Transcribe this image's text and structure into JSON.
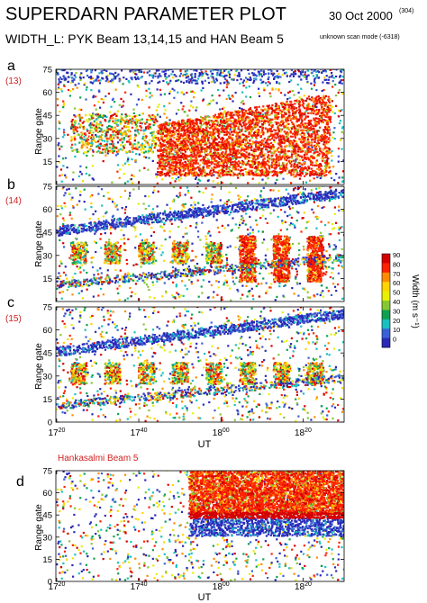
{
  "header": {
    "title": "SUPERDARN PARAMETER PLOT",
    "date": "30 Oct 2000",
    "date_sup": "(304)",
    "subtitle": "WIDTH_L: PYK Beam 13,14,15 and HAN Beam 5",
    "scan_mode": "unknown scan mode (-6318)"
  },
  "colorbar": {
    "title": "Width (m s⁻¹)",
    "ticks": [
      "90",
      "80",
      "70",
      "60",
      "50",
      "40",
      "30",
      "20",
      "10",
      "0"
    ],
    "colors": [
      "#d40000",
      "#ff2200",
      "#ff8c00",
      "#ffd400",
      "#e6f000",
      "#86c832",
      "#10a050",
      "#18c0c0",
      "#3a60d8",
      "#2a28b8"
    ]
  },
  "chart_data": [
    {
      "type": "heatmap",
      "panel_label": "a",
      "beam_label": "(13)",
      "ylabel": "Range gate",
      "yticks": [
        15,
        30,
        45,
        60,
        75
      ],
      "ylim": [
        0,
        75
      ],
      "xlim": [
        17.33,
        18.5
      ],
      "grid": false
    },
    {
      "type": "heatmap",
      "panel_label": "b",
      "beam_label": "(14)",
      "ylabel": "Range gate",
      "yticks": [
        15,
        30,
        45,
        60,
        75
      ],
      "ylim": [
        0,
        75
      ],
      "xlim": [
        17.33,
        18.5
      ],
      "grid": false
    },
    {
      "type": "heatmap",
      "panel_label": "c",
      "beam_label": "(15)",
      "ylabel": "Range gate",
      "yticks": [
        0,
        15,
        30,
        45,
        60,
        75
      ],
      "ylim": [
        0,
        75
      ],
      "xlim": [
        17.33,
        18.5
      ],
      "xticks": [
        {
          "hh": "17",
          "mm": "20"
        },
        {
          "hh": "17",
          "mm": "40"
        },
        {
          "hh": "18",
          "mm": "00"
        },
        {
          "hh": "18",
          "mm": "20"
        }
      ],
      "xlabel": "UT",
      "grid": false
    },
    {
      "type": "heatmap",
      "panel_label": "d",
      "title": "Hankasalmi Beam 5",
      "ylabel": "Range gate",
      "yticks": [
        0,
        15,
        30,
        45,
        60,
        75
      ],
      "ylim": [
        0,
        75
      ],
      "xlim": [
        17.33,
        18.5
      ],
      "xticks": [
        {
          "hh": "17",
          "mm": "20"
        },
        {
          "hh": "17",
          "mm": "40"
        },
        {
          "hh": "18",
          "mm": "00"
        },
        {
          "hh": "18",
          "mm": "20"
        }
      ],
      "xlabel": "UT",
      "grid": false
    }
  ]
}
